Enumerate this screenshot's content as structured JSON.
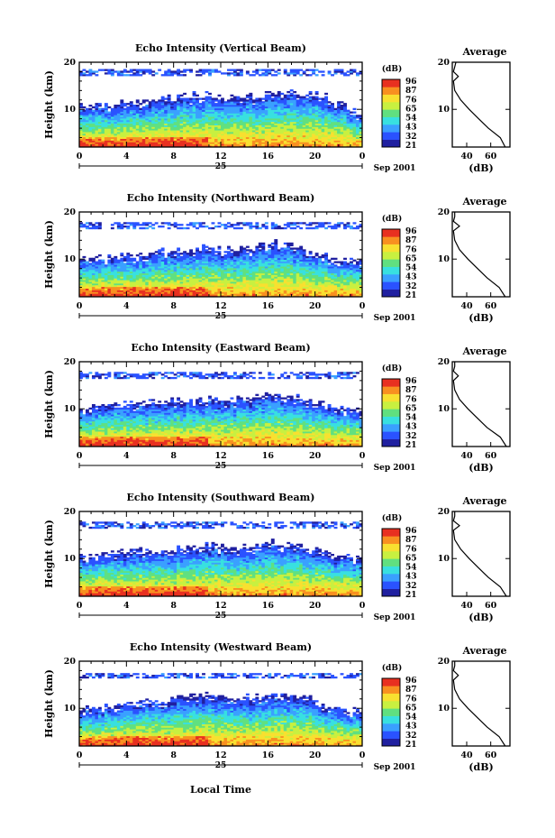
{
  "figure": {
    "ylabel": "Height (km)",
    "xlabel": "Local Time",
    "x_ticks": [
      "0",
      "4",
      "8",
      "12",
      "16",
      "20",
      "0"
    ],
    "y_ticks": [
      "20",
      "10"
    ],
    "day_label": "25",
    "month_label": "Sep 2001",
    "colorbar_unit": "(dB)",
    "colorbar_ticks": [
      "96",
      "87",
      "76",
      "65",
      "54",
      "43",
      "32",
      "21"
    ],
    "average_title": "Average",
    "average_xlabel": "(dB)",
    "average_x_ticks": [
      "40",
      "60"
    ],
    "average_y_ticks": [
      "20",
      "10"
    ]
  },
  "colors": {
    "scale": [
      "#2020a0",
      "#2a52ff",
      "#3aa0ff",
      "#38e0e0",
      "#60e080",
      "#c8f040",
      "#f8e030",
      "#f89020",
      "#e83020"
    ],
    "background": "#ffffff"
  },
  "chart_data": [
    {
      "type": "heatmap",
      "title": "Echo Intensity (Vertical Beam)",
      "x_range_hours": [
        0,
        24
      ],
      "y_range_km": [
        2,
        20
      ],
      "color_range_db": [
        21,
        96
      ],
      "cloud_top_km": [
        11.0,
        11.2,
        11.5,
        11.8,
        12.5,
        13.0,
        13.2,
        12.5,
        13.0,
        13.5,
        13.8,
        13.5,
        11.5,
        8.5
      ],
      "upper_layer_km": [
        17.0,
        18.5
      ],
      "average_profile": {
        "title": "Average",
        "xlabel": "(dB)",
        "heights_km": [
          2,
          4,
          6,
          8,
          10,
          12,
          14,
          16,
          17,
          18,
          19,
          20
        ],
        "db": [
          72,
          68,
          58,
          50,
          42,
          35,
          30,
          29,
          33,
          29,
          30,
          31
        ]
      }
    },
    {
      "type": "heatmap",
      "title": "Echo Intensity (Northward Beam)",
      "x_range_hours": [
        0,
        24
      ],
      "y_range_km": [
        2,
        20
      ],
      "color_range_db": [
        21,
        96
      ],
      "cloud_top_km": [
        10.5,
        10.8,
        11.0,
        11.3,
        11.8,
        12.2,
        12.8,
        12.0,
        12.5,
        13.5,
        12.8,
        11.5,
        10.0,
        9.5
      ],
      "upper_layer_km": [
        16.5,
        18.0
      ],
      "average_profile": {
        "title": "Average",
        "xlabel": "(dB)",
        "heights_km": [
          2,
          4,
          6,
          8,
          10,
          12,
          14,
          16,
          17,
          18,
          19,
          20
        ],
        "db": [
          72,
          67,
          57,
          49,
          41,
          34,
          30,
          29,
          34,
          29,
          30,
          30
        ]
      }
    },
    {
      "type": "heatmap",
      "title": "Echo Intensity (Eastward Beam)",
      "x_range_hours": [
        0,
        24
      ],
      "y_range_km": [
        2,
        20
      ],
      "color_range_db": [
        21,
        96
      ],
      "cloud_top_km": [
        10.5,
        11.0,
        11.2,
        11.5,
        11.8,
        12.0,
        12.6,
        12.0,
        12.8,
        13.2,
        12.6,
        11.6,
        10.2,
        9.8
      ],
      "upper_layer_km": [
        16.5,
        17.8
      ],
      "average_profile": {
        "title": "Average",
        "xlabel": "(dB)",
        "heights_km": [
          2,
          4,
          6,
          8,
          10,
          12,
          14,
          16,
          17,
          18,
          19,
          20
        ],
        "db": [
          73,
          68,
          57,
          49,
          41,
          34,
          30,
          29,
          33,
          29,
          30,
          30
        ]
      }
    },
    {
      "type": "heatmap",
      "title": "Echo Intensity (Southward Beam)",
      "x_range_hours": [
        0,
        24
      ],
      "y_range_km": [
        2,
        20
      ],
      "color_range_db": [
        21,
        96
      ],
      "cloud_top_km": [
        10.8,
        11.2,
        11.5,
        11.8,
        12.0,
        12.3,
        13.0,
        12.2,
        12.8,
        13.5,
        12.8,
        11.8,
        10.5,
        10.0
      ],
      "upper_layer_km": [
        16.5,
        18.0
      ],
      "average_profile": {
        "title": "Average",
        "xlabel": "(dB)",
        "heights_km": [
          2,
          4,
          6,
          8,
          10,
          12,
          14,
          16,
          17,
          18,
          19,
          20
        ],
        "db": [
          73,
          68,
          58,
          50,
          42,
          35,
          30,
          29,
          34,
          29,
          30,
          30
        ]
      }
    },
    {
      "type": "heatmap",
      "title": "Echo Intensity (Westward Beam)",
      "x_range_hours": [
        0,
        24
      ],
      "y_range_km": [
        2,
        20
      ],
      "color_range_db": [
        21,
        96
      ],
      "cloud_top_km": [
        10.0,
        10.5,
        11.0,
        11.5,
        12.0,
        12.5,
        13.2,
        12.2,
        12.5,
        13.5,
        12.8,
        11.5,
        9.8,
        9.5
      ],
      "upper_layer_km": [
        16.5,
        17.5
      ],
      "average_profile": {
        "title": "Average",
        "xlabel": "(dB)",
        "heights_km": [
          2,
          4,
          6,
          8,
          10,
          12,
          14,
          16,
          17,
          18,
          19,
          20
        ],
        "db": [
          72,
          67,
          57,
          49,
          41,
          34,
          30,
          29,
          33,
          29,
          30,
          30
        ]
      }
    }
  ]
}
